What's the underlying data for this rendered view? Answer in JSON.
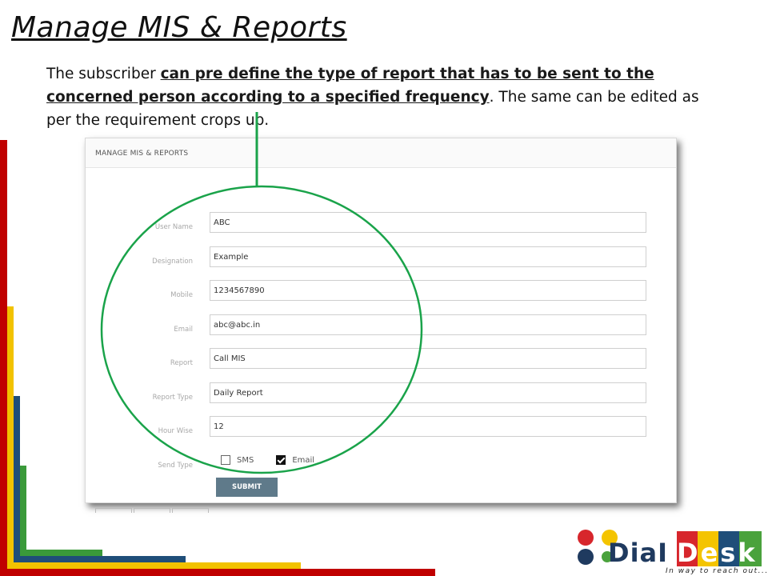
{
  "slide": {
    "title": "Manage MIS & Reports",
    "intro_start": "The subscriber ",
    "intro_highlight_1": "can pre define the type of report that has to be sent to the  concerned person according to a specified frequency",
    "intro_end": ". The same can be edited as per the requirement crops up."
  },
  "panel": {
    "header": "MANAGE MIS & REPORTS",
    "fields": [
      {
        "label": "User Name",
        "value": "ABC"
      },
      {
        "label": "Designation",
        "value": "Example"
      },
      {
        "label": "Mobile",
        "value": "1234567890"
      },
      {
        "label": "Email",
        "value": "abc@abc.in"
      },
      {
        "label": "Report",
        "value": "Call MIS"
      },
      {
        "label": "Report Type",
        "value": "Daily Report"
      },
      {
        "label": "Hour Wise",
        "value": "12"
      }
    ],
    "send_type": {
      "label": "Send Type",
      "options": [
        {
          "label": "SMS",
          "checked": false
        },
        {
          "label": "Email",
          "checked": true
        }
      ]
    },
    "submit_label": "SUBMIT"
  },
  "logo": {
    "word_dial": "DiaI",
    "word_desk": "Desk",
    "tagline": "In way to reach out...",
    "colors": {
      "red": "#d7262c",
      "yellow": "#f4c400",
      "green": "#4aa23c",
      "navy": "#1f3a5f",
      "box1": "#d7262c",
      "box2": "#f4c400",
      "box3": "#1f4e79",
      "box4": "#4aa23c"
    }
  },
  "colors": {
    "annotation_green": "#1aa34a",
    "bar_red": "#c00000",
    "bar_yellow": "#f2c200",
    "bar_blue": "#1f4e79",
    "bar_green": "#3a9a3a"
  }
}
